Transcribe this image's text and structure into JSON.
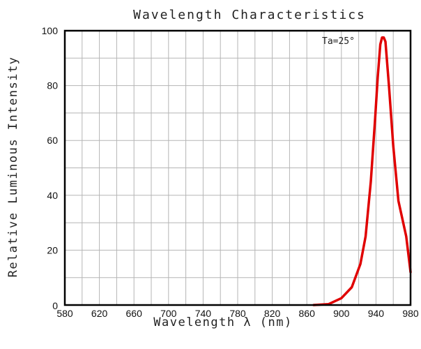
{
  "chart_data": {
    "type": "line",
    "title": "Wavelength Characteristics",
    "xlabel": "Wavelength λ (nm)",
    "ylabel": "Relative Luminous Intensity",
    "annotation": "Ta=25°",
    "xlim": [
      580,
      980
    ],
    "ylim": [
      0,
      100
    ],
    "x_ticks": [
      580,
      620,
      660,
      700,
      740,
      780,
      820,
      860,
      900,
      940,
      980
    ],
    "y_ticks": [
      0,
      20,
      40,
      60,
      80,
      100
    ],
    "grid": true,
    "series": [
      {
        "color": "#e00000",
        "x": [
          868,
          885,
          900,
          912,
          922,
          928,
          934,
          939,
          942,
          945,
          947,
          949,
          951,
          955,
          960,
          966,
          975,
          980
        ],
        "y": [
          0,
          0.3,
          2.5,
          6.5,
          15,
          25,
          45,
          68,
          83,
          95,
          97.5,
          97.5,
          96,
          80,
          58,
          38,
          25,
          12
        ]
      }
    ]
  }
}
